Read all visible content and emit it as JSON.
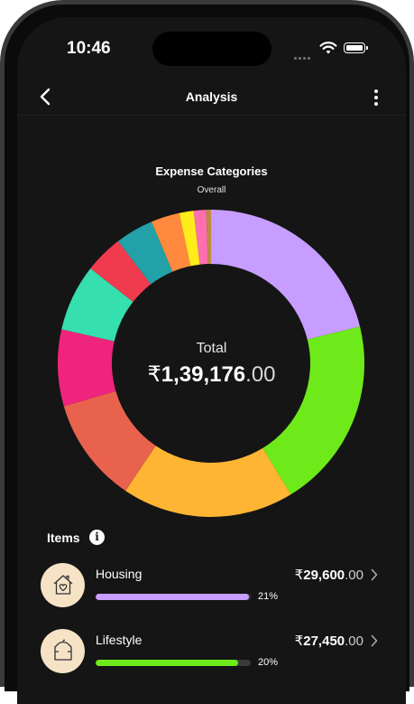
{
  "status": {
    "time": "10:46"
  },
  "nav": {
    "title": "Analysis"
  },
  "chart": {
    "title": "Expense Categories",
    "subtitle": "Overall",
    "total_label": "Total",
    "currency": "₹",
    "total_int": "1,39,176",
    "total_dec": ".00"
  },
  "chart_data": {
    "type": "pie",
    "title": "Expense Categories",
    "subtitle": "Overall",
    "series": [
      {
        "value": 21,
        "color": "#c79dff"
      },
      {
        "value": 20,
        "color": "#6eea1a"
      },
      {
        "value": 18,
        "color": "#ffb534"
      },
      {
        "value": 11,
        "color": "#e8624e"
      },
      {
        "value": 8,
        "color": "#f0247d"
      },
      {
        "value": 7,
        "color": "#35dfae"
      },
      {
        "value": 4,
        "color": "#f03b4f"
      },
      {
        "value": 4,
        "color": "#22a1a8"
      },
      {
        "value": 3,
        "color": "#ff8a3d"
      },
      {
        "value": 1.5,
        "color": "#ffec1a"
      },
      {
        "value": 1.3,
        "color": "#ff6fb0"
      },
      {
        "value": 0.5,
        "color": "#c08a44"
      }
    ]
  },
  "items": {
    "heading": "Items",
    "list": [
      {
        "name": "Housing",
        "currency": "₹",
        "amount_int": "29,600",
        "amount_dec": ".00",
        "percent": "21%",
        "fill": 0.99,
        "color": "#c79dff"
      },
      {
        "name": "Lifestyle",
        "currency": "₹",
        "amount_int": "27,450",
        "amount_dec": ".00",
        "percent": "20%",
        "fill": 0.92,
        "color": "#6eea1a"
      }
    ]
  }
}
